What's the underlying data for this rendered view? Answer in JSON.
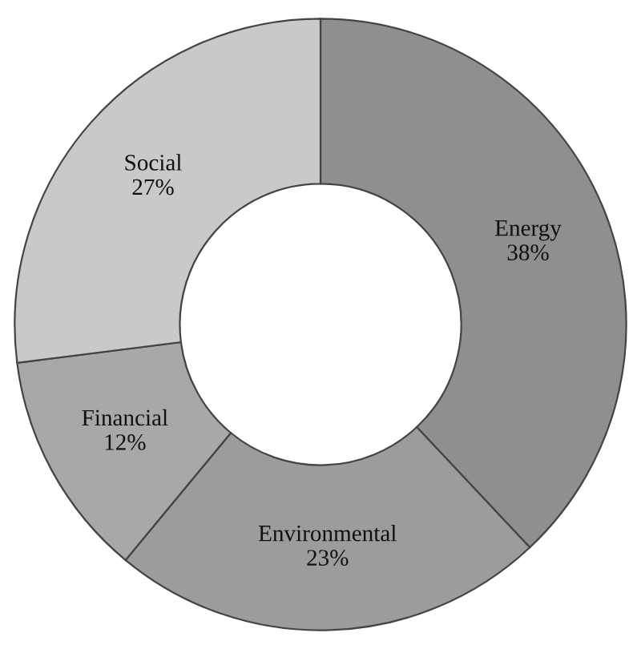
{
  "chart_data": {
    "type": "donut",
    "categories": [
      "Energy",
      "Environmental",
      "Financial",
      "Social"
    ],
    "values": [
      38,
      23,
      12,
      27
    ],
    "colors": [
      "#8f8f8f",
      "#9c9c9c",
      "#a8a8a8",
      "#c9c9c9"
    ],
    "value_labels": [
      "38%",
      "23%",
      "12%",
      "27%"
    ],
    "legend": false
  }
}
